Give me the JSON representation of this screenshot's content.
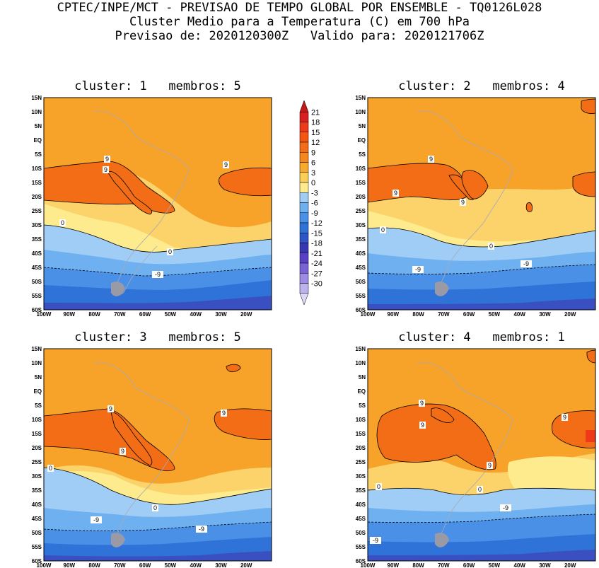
{
  "header": {
    "line1": "CPTEC/INPE/MCT - PREVISAO DE TEMPO GLOBAL POR ENSEMBLE - TQ0126L028",
    "line2": "Cluster Medio para a Temperatura (C) em 700 hPa",
    "line3": "Previsao de: 2020120300Z   Valido para: 2020121706Z"
  },
  "lat_labels": [
    "15N",
    "10N",
    "5N",
    "EQ",
    "5S",
    "10S",
    "15S",
    "20S",
    "25S",
    "30S",
    "35S",
    "40S",
    "45S",
    "50S",
    "55S",
    "60S"
  ],
  "lon_labels": [
    "100W",
    "90W",
    "80W",
    "70W",
    "60W",
    "50W",
    "40W",
    "30W",
    "20W"
  ],
  "colorbar": {
    "labels": [
      "21",
      "18",
      "15",
      "12",
      "9",
      "6",
      "3",
      "0",
      "-3",
      "-6",
      "-9",
      "-12",
      "-15",
      "-18",
      "-21",
      "-24",
      "-27",
      "-30"
    ],
    "colors": [
      "#c01a1a",
      "#d92020",
      "#ee3a18",
      "#f5550f",
      "#f26d15",
      "#f5871c",
      "#f7aa2c",
      "#fbcf55",
      "#fdeb8e",
      "#a0cdf6",
      "#6fb0f0",
      "#4a90e6",
      "#2f72d8",
      "#2e56c4",
      "#3838b2",
      "#5a40c6",
      "#7a62d6",
      "#9c8ce4",
      "#bcb3ee",
      "#dcd8f6"
    ]
  },
  "panels": [
    {
      "title": "cluster: 1   membros: 5",
      "labels": {
        "nine_a": "9",
        "nine_b": "9",
        "nine_c": "9",
        "zero_a": "0",
        "zero_b": "0",
        "minus9": "-9"
      }
    },
    {
      "title": "cluster: 2   membros: 4",
      "labels": {
        "nine_a": "9",
        "nine_b": "9",
        "nine_c": "9",
        "zero_a": "0",
        "zero_b": "0",
        "minus9": "-9",
        "minus9_b": "-9"
      }
    },
    {
      "title": "cluster: 3   membros: 5",
      "labels": {
        "nine_a": "9",
        "nine_b": "9",
        "nine_c": "9",
        "zero_a": "0",
        "zero_b": "0",
        "minus9": "-9",
        "minus9_b": "-9"
      }
    },
    {
      "title": "cluster: 4   membros: 1",
      "labels": {
        "nine_a": "9",
        "nine_b": "9",
        "nine_c": "9",
        "nine_d": "9",
        "zero_a": "0",
        "zero_b": "0",
        "minus9": "-9",
        "minus9_b": "-9"
      }
    }
  ]
}
